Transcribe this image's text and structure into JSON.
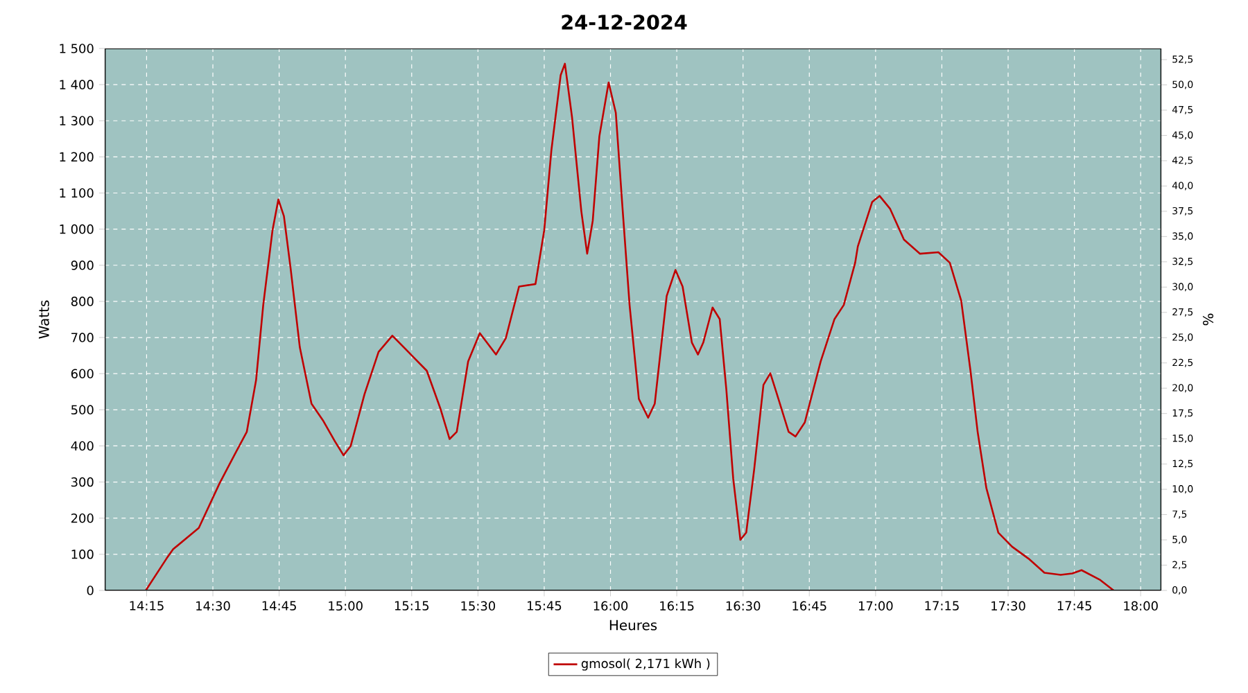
{
  "chart_data": {
    "type": "line",
    "title": "24-12-2024",
    "xlabel": "Heures",
    "ylabel": "Watts",
    "y2label": "%",
    "x": [
      14.247,
      14.325,
      14.35,
      14.447,
      14.525,
      14.585,
      14.628,
      14.663,
      14.69,
      14.725,
      14.747,
      14.768,
      14.793,
      14.828,
      14.872,
      14.915,
      14.96,
      14.993,
      15.02,
      15.072,
      15.125,
      15.177,
      15.247,
      15.307,
      15.358,
      15.393,
      15.42,
      15.463,
      15.507,
      15.568,
      15.605,
      15.655,
      15.717,
      15.75,
      15.777,
      15.812,
      15.828,
      15.855,
      15.89,
      15.912,
      15.933,
      15.958,
      15.993,
      16.02,
      16.045,
      16.072,
      16.107,
      16.142,
      16.167,
      16.212,
      16.245,
      16.272,
      16.307,
      16.33,
      16.35,
      16.385,
      16.412,
      16.437,
      16.463,
      16.49,
      16.512,
      16.542,
      16.577,
      16.603,
      16.628,
      16.672,
      16.698,
      16.733,
      16.793,
      16.845,
      16.88,
      16.923,
      16.933,
      16.987,
      17.015,
      17.055,
      17.107,
      17.167,
      17.237,
      17.28,
      17.323,
      17.358,
      17.385,
      17.418,
      17.463,
      17.515,
      17.577,
      17.637,
      17.698,
      17.742,
      17.777,
      17.845,
      17.898
    ],
    "series": [
      {
        "name": "gmosol( 2,171 kWh )",
        "color": "#c00000",
        "values": [
          0,
          88,
          114,
          173,
          296,
          380,
          439,
          582,
          790,
          997,
          1082,
          1036,
          893,
          673,
          517,
          471,
          413,
          374,
          400,
          543,
          660,
          705,
          653,
          608,
          504,
          419,
          439,
          634,
          712,
          653,
          698,
          841,
          848,
          997,
          1218,
          1426,
          1458,
          1309,
          1049,
          932,
          1023,
          1257,
          1406,
          1322,
          1062,
          790,
          530,
          478,
          517,
          815,
          887,
          841,
          686,
          653,
          686,
          783,
          751,
          556,
          309,
          140,
          160,
          335,
          569,
          601,
          543,
          439,
          426,
          465,
          634,
          751,
          790,
          907,
          952,
          1075,
          1092,
          1056,
          971,
          932,
          936,
          907,
          802,
          608,
          439,
          283,
          160,
          121,
          88,
          49,
          43,
          47,
          56,
          30,
          0
        ]
      }
    ],
    "xlim": [
      14.093,
      18.077
    ],
    "xticks": [
      {
        "value": 14.25,
        "label": "14:15"
      },
      {
        "value": 14.5,
        "label": "14:30"
      },
      {
        "value": 14.75,
        "label": "14:45"
      },
      {
        "value": 15,
        "label": "15:00"
      },
      {
        "value": 15.25,
        "label": "15:15"
      },
      {
        "value": 15.5,
        "label": "15:30"
      },
      {
        "value": 15.75,
        "label": "15:45"
      },
      {
        "value": 16,
        "label": "16:00"
      },
      {
        "value": 16.25,
        "label": "16:15"
      },
      {
        "value": 16.5,
        "label": "16:30"
      },
      {
        "value": 16.75,
        "label": "16:45"
      },
      {
        "value": 17,
        "label": "17:00"
      },
      {
        "value": 17.25,
        "label": "17:15"
      },
      {
        "value": 17.5,
        "label": "17:30"
      },
      {
        "value": 17.75,
        "label": "17:45"
      },
      {
        "value": 18,
        "label": "18:00"
      }
    ],
    "ylim": [
      0,
      1500
    ],
    "yticks": [
      0,
      100,
      200,
      300,
      400,
      500,
      600,
      700,
      800,
      900,
      {
        "value": 1000,
        "label": "1 000"
      },
      {
        "value": 1100,
        "label": "1 100"
      },
      {
        "value": 1200,
        "label": "1 200"
      },
      {
        "value": 1300,
        "label": "1 300"
      },
      {
        "value": 1400,
        "label": "1 400"
      },
      {
        "value": 1500,
        "label": "1 500"
      }
    ],
    "y2lim": [
      0,
      53.6
    ],
    "y2ticks": [
      {
        "value": 0,
        "label": "0,0"
      },
      {
        "value": 2.5,
        "label": "2,5"
      },
      {
        "value": 5,
        "label": "5,0"
      },
      {
        "value": 7.5,
        "label": "7,5"
      },
      {
        "value": 10,
        "label": "10,0"
      },
      {
        "value": 12.5,
        "label": "12,5"
      },
      {
        "value": 15,
        "label": "15,0"
      },
      {
        "value": 17.5,
        "label": "17,5"
      },
      {
        "value": 20,
        "label": "20,0"
      },
      {
        "value": 22.5,
        "label": "22,5"
      },
      {
        "value": 25,
        "label": "25,0"
      },
      {
        "value": 27.5,
        "label": "27,5"
      },
      {
        "value": 30,
        "label": "30,0"
      },
      {
        "value": 32.5,
        "label": "32,5"
      },
      {
        "value": 35,
        "label": "35,0"
      },
      {
        "value": 37.5,
        "label": "37,5"
      },
      {
        "value": 40,
        "label": "40,0"
      },
      {
        "value": 42.5,
        "label": "42,5"
      },
      {
        "value": 45,
        "label": "45,0"
      },
      {
        "value": 47.5,
        "label": "47,5"
      },
      {
        "value": 50,
        "label": "50,0"
      },
      {
        "value": 52.5,
        "label": "52,5"
      }
    ],
    "grid": true,
    "legend": "bottom",
    "marker": "none",
    "line_style": "solid"
  }
}
